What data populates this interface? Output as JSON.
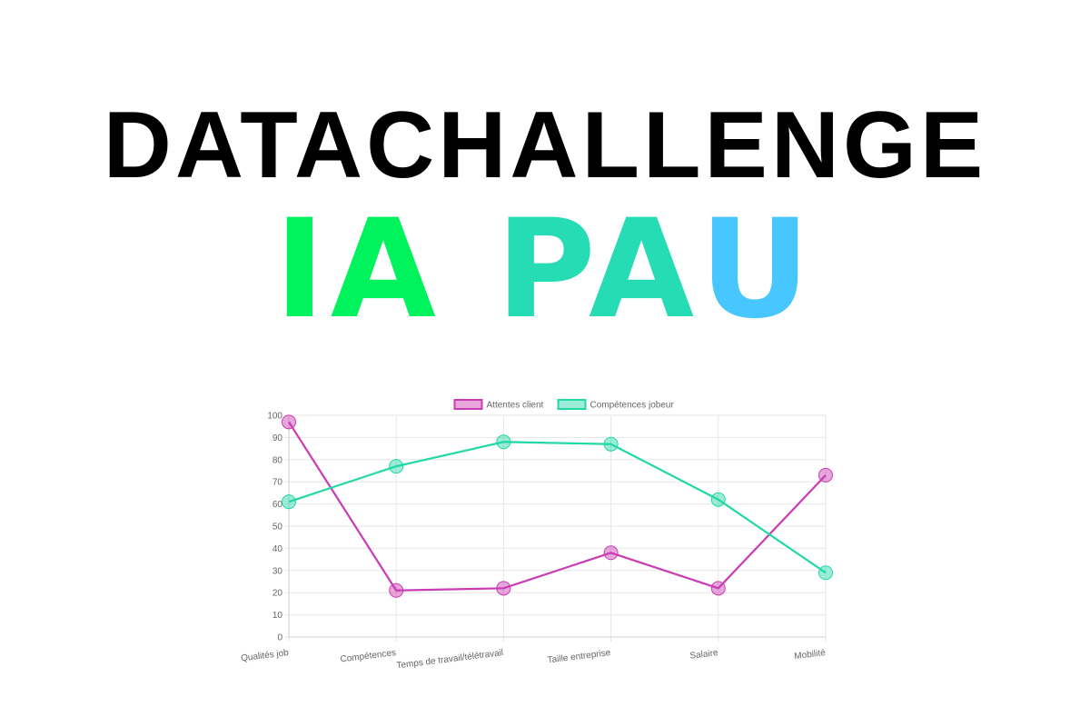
{
  "header": {
    "title": "DATACHALLENGE",
    "subtitle_parts": [
      {
        "text": "IA",
        "color": "#00f25c"
      },
      {
        "text": "PA",
        "color": "#26dcb4"
      },
      {
        "text": "U",
        "color": "#48c6ff"
      }
    ]
  },
  "chart_data": {
    "type": "line",
    "categories": [
      "Qualités job",
      "Compétences",
      "Temps de travail/télétravail",
      "Taille entreprise",
      "Salaire",
      "Mobilité"
    ],
    "series": [
      {
        "name": "Attentes client",
        "values": [
          97,
          21,
          22,
          38,
          22,
          73
        ],
        "color": "#c93cb4"
      },
      {
        "name": "Compétences jobeur",
        "values": [
          61,
          77,
          88,
          87,
          62,
          29
        ],
        "color": "#21d8a6"
      }
    ],
    "ylim": [
      0,
      100
    ],
    "yticks": [
      0,
      10,
      20,
      30,
      40,
      50,
      60,
      70,
      80,
      90,
      100
    ],
    "grid": true,
    "legend_position": "top"
  }
}
